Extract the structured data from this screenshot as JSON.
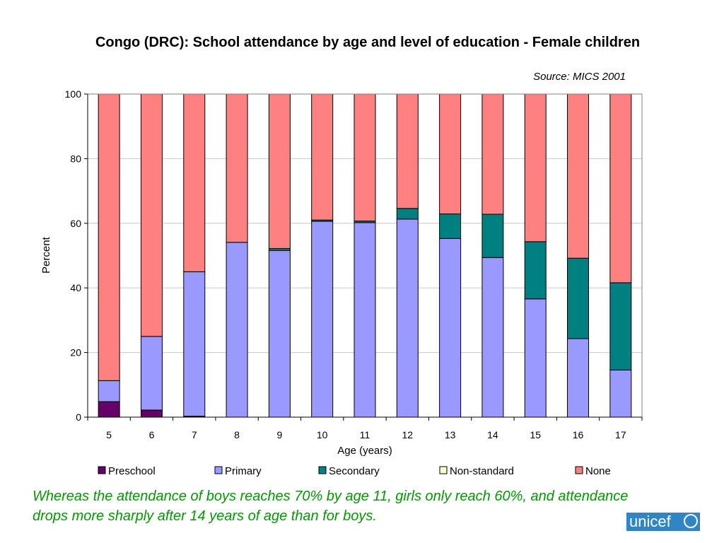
{
  "chart_data": {
    "type": "bar",
    "stacked": true,
    "title": "Congo (DRC): School attendance by age and level of education - Female children",
    "source_note": "Source: MICS 2001",
    "xlabel": "Age (years)",
    "ylabel": "Percent",
    "ylim": [
      0,
      100
    ],
    "yticks": [
      0,
      20,
      40,
      60,
      80,
      100
    ],
    "grid": true,
    "legend_position": "bottom",
    "categories": [
      "5",
      "6",
      "7",
      "8",
      "9",
      "10",
      "11",
      "12",
      "13",
      "14",
      "15",
      "16",
      "17"
    ],
    "series": [
      {
        "name": "Preschool",
        "color": "#660066",
        "values": [
          4.8,
          2.2,
          0.3,
          0,
          0,
          0,
          0,
          0,
          0,
          0,
          0,
          0,
          0
        ]
      },
      {
        "name": "Primary",
        "color": "#9999ff",
        "values": [
          6.5,
          22.8,
          44.7,
          54.1,
          51.6,
          60.6,
          60.2,
          61.3,
          55.3,
          49.4,
          36.6,
          24.3,
          14.6
        ]
      },
      {
        "name": "Secondary",
        "color": "#008080",
        "values": [
          0,
          0,
          0,
          0,
          0.6,
          0.4,
          0.5,
          3.3,
          7.6,
          13.4,
          17.7,
          24.9,
          27.0
        ]
      },
      {
        "name": "Non-standard",
        "color": "#ffffcc",
        "values": [
          0,
          0,
          0,
          0,
          0,
          0,
          0,
          0,
          0,
          0,
          0,
          0,
          0
        ]
      },
      {
        "name": "None",
        "color": "#ff8080",
        "values": [
          88.7,
          75.0,
          55.0,
          45.9,
          47.8,
          39.0,
          39.3,
          35.4,
          37.1,
          37.2,
          45.7,
          50.8,
          58.4
        ]
      }
    ]
  },
  "caption": {
    "text": "Whereas the attendance of boys reaches 70% by age 11, girls only reach 60%, and attendance drops more sharply after 14 years of age than for boys.",
    "color": "#009900"
  },
  "logo": {
    "text": "unicef"
  }
}
